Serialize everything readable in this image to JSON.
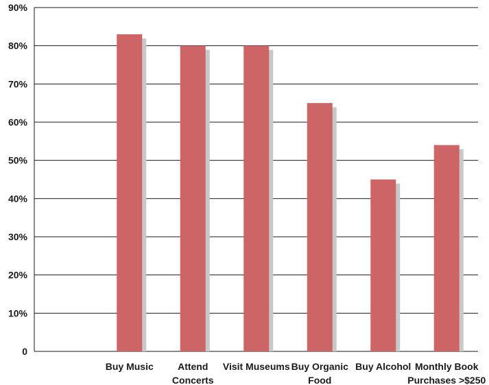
{
  "chart_data": {
    "type": "bar",
    "categories": [
      "",
      "Buy Music",
      "Attend Concerts",
      "Visit Museums",
      "Buy Organic Food",
      "Buy Alcohol",
      "Monthly Book Purchases >$250"
    ],
    "category_label_lines": [
      [],
      [
        "Buy Music"
      ],
      [
        "Attend",
        "Concerts"
      ],
      [
        "Visit Museums"
      ],
      [
        "Buy Organic",
        "Food"
      ],
      [
        "Buy Alcohol"
      ],
      [
        "Monthly Book",
        "Purchases >$250"
      ]
    ],
    "series": [
      {
        "values": [
          null,
          83,
          80,
          80,
          65,
          45,
          54
        ]
      }
    ],
    "y_ticks": [
      "0",
      "10%",
      "20%",
      "30%",
      "40%",
      "50%",
      "60%",
      "70%",
      "80%",
      "90%"
    ],
    "ylim": [
      0,
      90
    ],
    "grid": true,
    "colors": {
      "bar": "#cd6566",
      "shadow": "#c8c8c8",
      "grid": "#1a1a1a"
    }
  }
}
